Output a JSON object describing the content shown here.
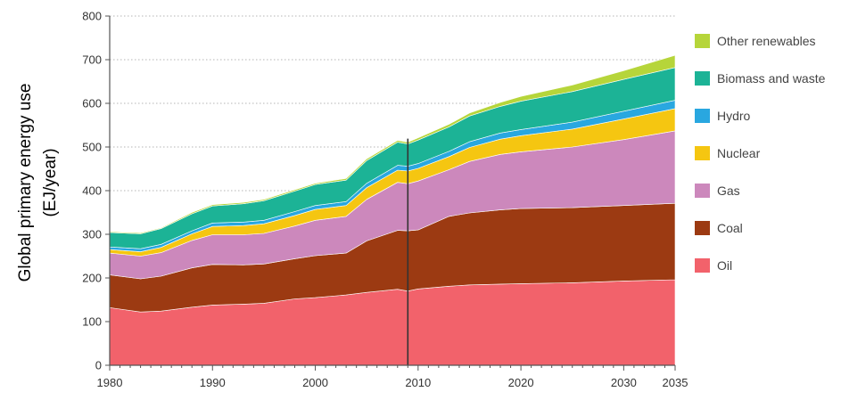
{
  "chart_data": {
    "type": "area",
    "stacked": true,
    "ylabel_line1": "Global primary energy use",
    "ylabel_line2": "(EJ/year)",
    "xlabel": "",
    "xlim": [
      1980,
      2035
    ],
    "ylim": [
      0,
      800
    ],
    "xticks": [
      1980,
      1990,
      2000,
      2010,
      2020,
      2030,
      2035
    ],
    "yticks": [
      0,
      100,
      200,
      300,
      400,
      500,
      600,
      700,
      800
    ],
    "grid": "dotted horizontal",
    "legend_position": "right",
    "divider_year": 2009,
    "x": [
      1980,
      1983,
      1985,
      1988,
      1990,
      1993,
      1995,
      1998,
      2000,
      2003,
      2005,
      2008,
      2009,
      2010,
      2013,
      2015,
      2018,
      2020,
      2025,
      2030,
      2035
    ],
    "series": [
      {
        "name": "Oil",
        "color": "#f2626b",
        "values": [
          132,
          122,
          124,
          133,
          138,
          140,
          142,
          152,
          155,
          161,
          167,
          174,
          170,
          175,
          181,
          184,
          186,
          187,
          189,
          193,
          196
        ]
      },
      {
        "name": "Coal",
        "color": "#9c3a12",
        "values": [
          75,
          76,
          80,
          90,
          93,
          90,
          90,
          92,
          96,
          96,
          118,
          135,
          138,
          135,
          160,
          165,
          170,
          172,
          172,
          173,
          175
        ]
      },
      {
        "name": "Gas",
        "color": "#cc88bc",
        "values": [
          50,
          52,
          54,
          63,
          68,
          69,
          70,
          75,
          81,
          84,
          95,
          110,
          108,
          112,
          107,
          118,
          127,
          130,
          139,
          151,
          166
        ]
      },
      {
        "name": "Nuclear",
        "color": "#f5c611",
        "values": [
          8,
          10,
          12,
          15,
          19,
          21,
          22,
          24,
          25,
          25,
          27,
          28,
          29,
          29,
          30,
          32,
          35,
          37,
          41,
          47,
          51
        ]
      },
      {
        "name": "Hydro",
        "color": "#29a7e0",
        "values": [
          6,
          7,
          7,
          7,
          8,
          8,
          8,
          9,
          9,
          9,
          10,
          11,
          11,
          11,
          12,
          13,
          14,
          14,
          16,
          18,
          19
        ]
      },
      {
        "name": "Biomass and waste",
        "color": "#1cb396",
        "values": [
          33,
          34,
          36,
          39,
          39,
          42,
          45,
          47,
          48,
          49,
          52,
          53,
          51,
          54,
          56,
          59,
          61,
          65,
          70,
          73,
          75
        ]
      },
      {
        "name": "Other renewables",
        "color": "#b6d53a",
        "values": [
          2,
          2,
          2,
          3,
          3,
          3,
          3,
          3,
          3,
          4,
          4,
          4,
          4,
          5,
          6,
          7,
          9,
          11,
          15,
          20,
          28
        ]
      }
    ]
  }
}
